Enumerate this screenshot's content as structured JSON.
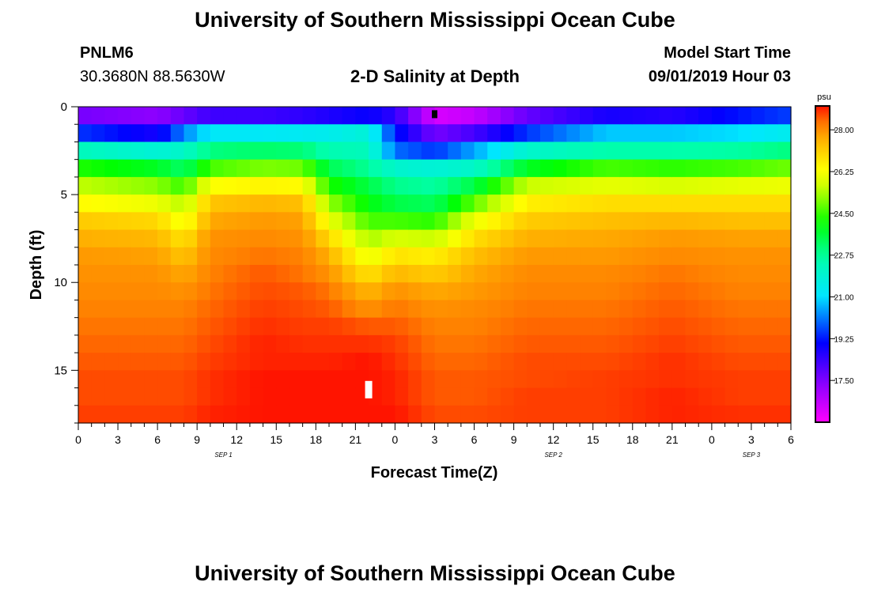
{
  "page": {
    "title_top": "University of Southern Mississippi Ocean Cube",
    "title_bottom": "University of Southern Mississippi Ocean Cube",
    "station_id": "PNLM6",
    "coords": "30.3680N 88.5630W",
    "subtitle": "2-D Salinity at Depth",
    "model_label": "Model Start Time",
    "model_time": "09/01/2019 Hour 03"
  },
  "chart_data": {
    "type": "heatmap",
    "title": "2-D Salinity at Depth",
    "xlabel": "Forecast Time(Z)",
    "ylabel": "Depth (ft)",
    "x_ticks": [
      "0",
      "3",
      "6",
      "9",
      "12",
      "15",
      "18",
      "21",
      "0",
      "3",
      "6",
      "9",
      "12",
      "15",
      "18",
      "21",
      "0",
      "3",
      "6"
    ],
    "x_range_hours": [
      0,
      54
    ],
    "date_labels": [
      {
        "text": "SEP 1",
        "hour": 11
      },
      {
        "text": "SEP 2",
        "hour": 36
      },
      {
        "text": "SEP 3",
        "hour": 51
      }
    ],
    "y_ticks": [
      0,
      5,
      10,
      15
    ],
    "ylim": [
      0,
      18
    ],
    "colorbar": {
      "unit": "psu",
      "ticks": [
        "28.00",
        "26.25",
        "24.50",
        "22.75",
        "21.00",
        "19.25",
        "17.50"
      ],
      "min": 15.75,
      "max": 29.0
    },
    "markers": [
      {
        "label": "surface marker",
        "hour": 27,
        "depth": 0.2,
        "color": "#000000"
      },
      {
        "label": "bottom marker",
        "hour": 22,
        "depth": 16.1,
        "color": "#ffffff"
      }
    ],
    "profiles": [
      {
        "hour": 0,
        "values": [
          17.6,
          19.5,
          22.3,
          24.3,
          25.5,
          26.4,
          27.2,
          27.6,
          27.9,
          28.0,
          28.1,
          28.2,
          28.3,
          28.4,
          28.5,
          28.6,
          28.6,
          28.7
        ]
      },
      {
        "hour": 6,
        "values": [
          17.3,
          18.8,
          21.8,
          23.8,
          25.1,
          26.1,
          27.0,
          27.5,
          27.8,
          28.0,
          28.1,
          28.2,
          28.3,
          28.4,
          28.5,
          28.6,
          28.6,
          28.7
        ]
      },
      {
        "hour": 8,
        "values": [
          17.8,
          20.2,
          22.1,
          23.2,
          24.5,
          25.4,
          26.1,
          26.8,
          27.3,
          27.7,
          28.0,
          28.2,
          28.3,
          28.4,
          28.5,
          28.6,
          28.6,
          28.7
        ]
      },
      {
        "hour": 10,
        "values": [
          18.3,
          21.2,
          23.0,
          24.6,
          26.3,
          27.3,
          27.7,
          28.0,
          28.1,
          28.2,
          28.3,
          28.4,
          28.5,
          28.6,
          28.7,
          28.8,
          28.8,
          28.9
        ]
      },
      {
        "hour": 14,
        "values": [
          18.3,
          21.2,
          23.2,
          25.0,
          26.5,
          27.5,
          27.9,
          28.1,
          28.3,
          28.5,
          28.6,
          28.7,
          28.8,
          28.9,
          28.9,
          29.0,
          29.0,
          29.0
        ]
      },
      {
        "hour": 17,
        "values": [
          18.5,
          21.3,
          23.1,
          24.9,
          26.4,
          27.4,
          27.8,
          28.0,
          28.2,
          28.3,
          28.5,
          28.6,
          28.7,
          28.8,
          28.9,
          29.0,
          29.0,
          29.0
        ]
      },
      {
        "hour": 19,
        "values": [
          18.7,
          21.4,
          22.5,
          23.4,
          24.3,
          25.2,
          26.1,
          27.0,
          27.6,
          28.0,
          28.3,
          28.5,
          28.7,
          28.8,
          28.9,
          29.0,
          29.0,
          29.0
        ]
      },
      {
        "hour": 22,
        "values": [
          19.0,
          21.8,
          22.3,
          22.8,
          23.5,
          24.0,
          24.6,
          25.3,
          26.0,
          26.8,
          27.5,
          28.0,
          28.5,
          28.8,
          29.0,
          29.0,
          29.0,
          29.0
        ]
      },
      {
        "hour": 24,
        "values": [
          18.5,
          19.3,
          20.0,
          22.0,
          22.9,
          23.5,
          24.6,
          25.8,
          26.8,
          27.5,
          28.0,
          28.3,
          28.5,
          28.7,
          28.8,
          28.9,
          28.9,
          29.0
        ]
      },
      {
        "hour": 27,
        "values": [
          16.3,
          17.6,
          19.5,
          21.8,
          22.7,
          23.3,
          24.4,
          25.6,
          26.6,
          27.2,
          27.7,
          28.0,
          28.2,
          28.3,
          28.4,
          28.5,
          28.5,
          28.6
        ]
      },
      {
        "hour": 30,
        "values": [
          16.6,
          18.2,
          20.5,
          22.1,
          23.5,
          24.8,
          26.1,
          26.9,
          27.4,
          27.7,
          27.9,
          28.1,
          28.2,
          28.3,
          28.4,
          28.5,
          28.5,
          28.6
        ]
      },
      {
        "hour": 34,
        "values": [
          17.8,
          19.5,
          22.0,
          23.8,
          25.6,
          26.6,
          27.2,
          27.6,
          27.9,
          28.1,
          28.2,
          28.3,
          28.4,
          28.5,
          28.6,
          28.6,
          28.7,
          28.7
        ]
      },
      {
        "hour": 40,
        "values": [
          18.8,
          20.8,
          22.6,
          24.6,
          26.0,
          26.9,
          27.4,
          27.7,
          27.9,
          28.1,
          28.2,
          28.3,
          28.4,
          28.5,
          28.6,
          28.7,
          28.7,
          28.7
        ]
      },
      {
        "hour": 45,
        "values": [
          18.6,
          20.8,
          22.6,
          24.4,
          25.8,
          26.9,
          27.5,
          27.9,
          28.1,
          28.3,
          28.4,
          28.5,
          28.6,
          28.7,
          28.8,
          28.8,
          28.9,
          28.9
        ]
      },
      {
        "hour": 50,
        "values": [
          19.2,
          21.0,
          22.7,
          24.6,
          26.0,
          26.9,
          27.4,
          27.8,
          28.0,
          28.1,
          28.2,
          28.3,
          28.4,
          28.5,
          28.6,
          28.7,
          28.7,
          28.8
        ]
      },
      {
        "hour": 54,
        "values": [
          19.6,
          21.4,
          23.0,
          24.9,
          26.1,
          26.9,
          27.4,
          27.8,
          28.0,
          28.1,
          28.2,
          28.3,
          28.4,
          28.5,
          28.6,
          28.7,
          28.7,
          28.8
        ]
      }
    ]
  }
}
